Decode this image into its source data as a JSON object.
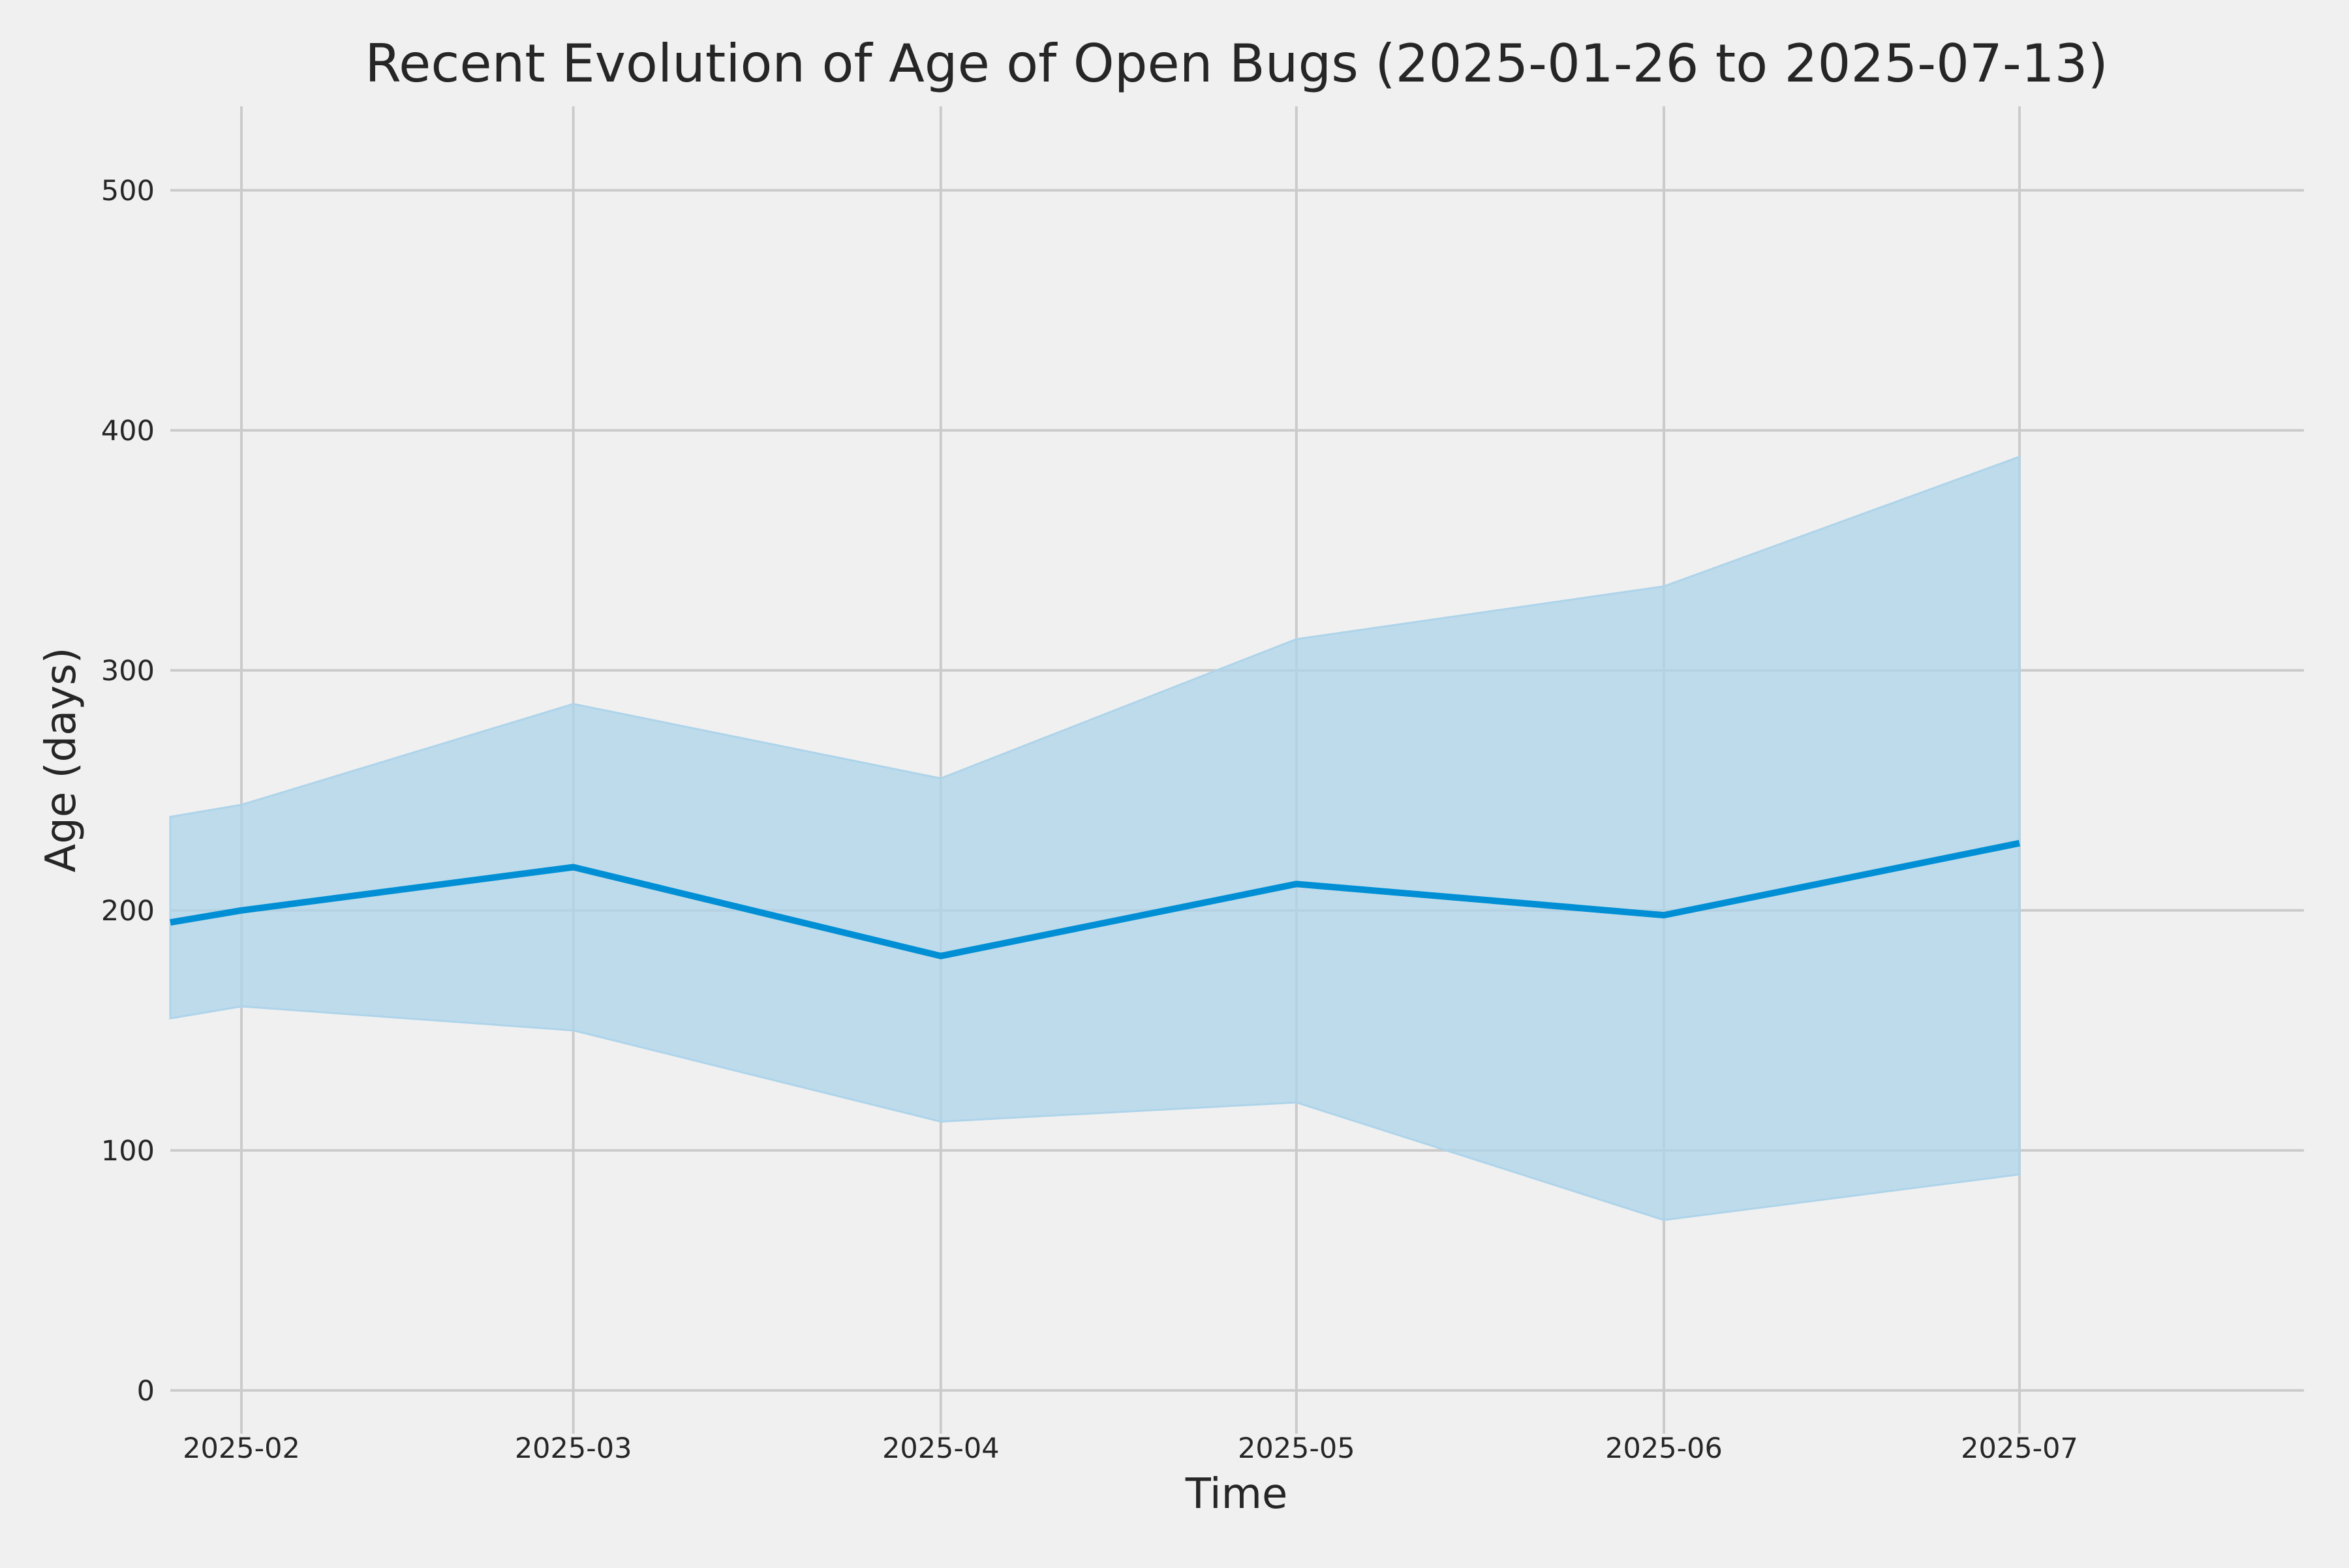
{
  "chart_data": {
    "type": "line",
    "title": "Recent Evolution of Age of Open Bugs (2025-01-26 to 2025-07-13)",
    "xlabel": "Time",
    "ylabel": "Age (days)",
    "xlim": [
      "2025-01-26",
      "2025-07-25"
    ],
    "ylim": [
      -18,
      535
    ],
    "grid": true,
    "x_tick_labels": [
      "2025-02",
      "2025-03",
      "2025-04",
      "2025-05",
      "2025-06",
      "2025-07"
    ],
    "x_ticks": [
      "2025-02-01",
      "2025-03-01",
      "2025-04-01",
      "2025-05-01",
      "2025-06-01",
      "2025-07-01"
    ],
    "y_ticks": [
      0,
      100,
      200,
      300,
      400,
      500
    ],
    "x": [
      "2025-01-26",
      "2025-02-01",
      "2025-03-01",
      "2025-04-01",
      "2025-05-01",
      "2025-06-01",
      "2025-07-01"
    ],
    "series": [
      {
        "values": [
          195,
          200,
          218,
          181,
          211,
          198,
          228
        ],
        "lower": [
          155,
          160,
          150,
          112,
          120,
          71,
          90
        ],
        "upper": [
          239,
          244,
          286,
          255,
          313,
          335,
          389
        ],
        "color": "#008fd5",
        "band_color": "#aed4ea"
      }
    ]
  }
}
